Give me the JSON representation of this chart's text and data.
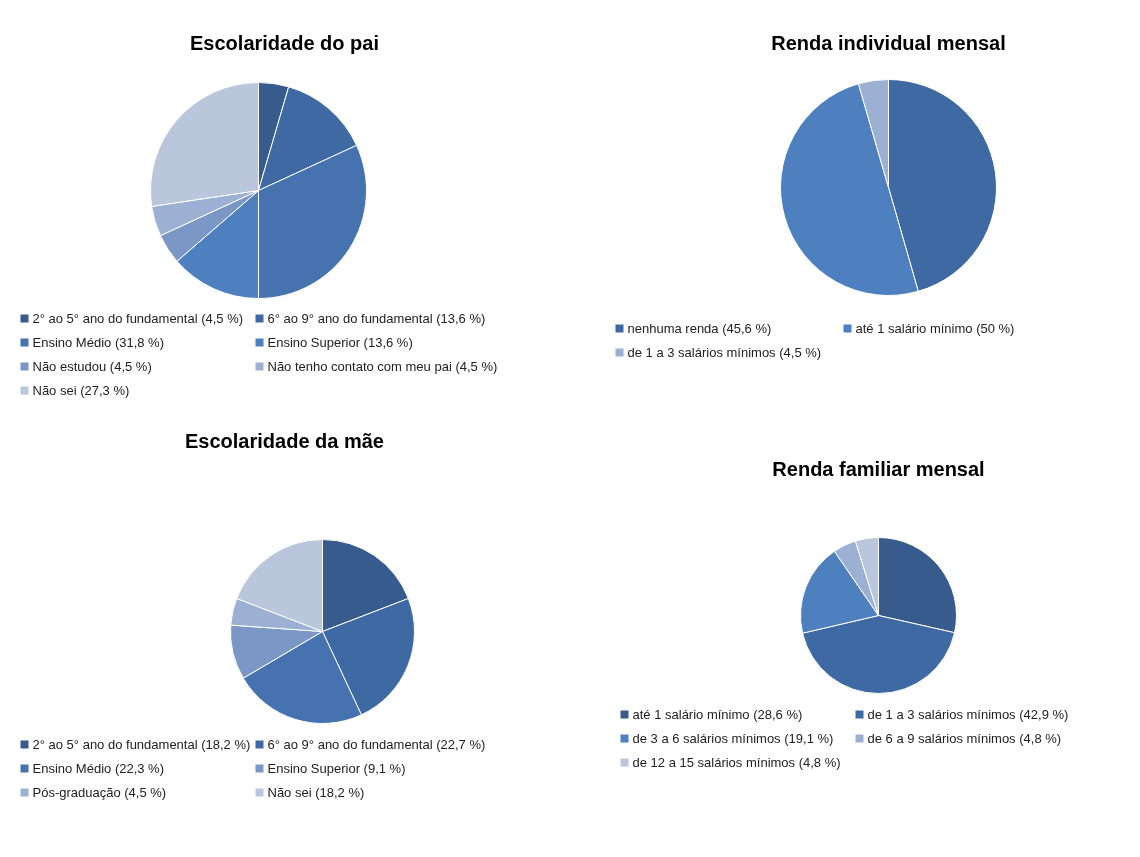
{
  "chart_data": [
    {
      "type": "pie",
      "title": "Escolaridade do pai",
      "legend": "bottom",
      "categories": [
        "2° ao 5° ano do fundamental (4,5 %)",
        "6° ao 9° ano do fundamental (13,6 %)",
        "Ensino Médio (31,8 %)",
        "Ensino Superior (13,6 %)",
        "Não estudou (4,5 %)",
        "Não tenho contato com meu pai (4,5 %)",
        "Não sei (27,3 %)"
      ],
      "values": [
        4.5,
        13.6,
        31.8,
        13.6,
        4.5,
        4.5,
        27.3
      ],
      "colors": [
        "#365b8c",
        "#3e69a3",
        "#4672b0",
        "#4e80bf",
        "#7a97c6",
        "#9cb0d4",
        "#bac6dc"
      ]
    },
    {
      "type": "pie",
      "title": "Renda individual mensal",
      "legend": "bottom",
      "categories": [
        "nenhuma renda (45,6 %)",
        "até 1 salário mínimo (50 %)",
        "de 1 a 3 salários mínimos (4,5 %)"
      ],
      "values": [
        45.6,
        50,
        4.5
      ],
      "colors": [
        "#3e69a3",
        "#4e80bf",
        "#9cb0d4"
      ]
    },
    {
      "type": "pie",
      "title": "Escolaridade da mãe",
      "legend": "bottom",
      "categories": [
        "2° ao 5° ano do fundamental (18,2 %)",
        "6° ao 9° ano do fundamental (22,7 %)",
        "Ensino Médio (22,3 %)",
        "Ensino Superior (9,1 %)",
        "Pós-graduação (4,5 %)",
        "Não sei (18,2 %)"
      ],
      "values": [
        18.2,
        22.7,
        22.3,
        9.1,
        4.5,
        18.2
      ],
      "colors": [
        "#365b8c",
        "#3e69a3",
        "#4672b0",
        "#7a97c6",
        "#9cb0d4",
        "#bac6dc"
      ]
    },
    {
      "type": "pie",
      "title": "Renda familiar mensal",
      "legend": "bottom",
      "categories": [
        "até 1 salário mínimo (28,6 %)",
        "de 1 a 3 salários mínimos (42,9 %)",
        "de 3 a 6 salários mínimos (19,1 %)",
        "de 6 a 9 salários mínimos (4,8 %)",
        "de 12 a 15 salários mínimos (4,8 %)"
      ],
      "values": [
        28.6,
        42.9,
        19.1,
        4.8,
        4.8
      ],
      "colors": [
        "#365b8c",
        "#3e69a3",
        "#4e80bf",
        "#9cb0d4",
        "#bac6dc"
      ]
    }
  ]
}
